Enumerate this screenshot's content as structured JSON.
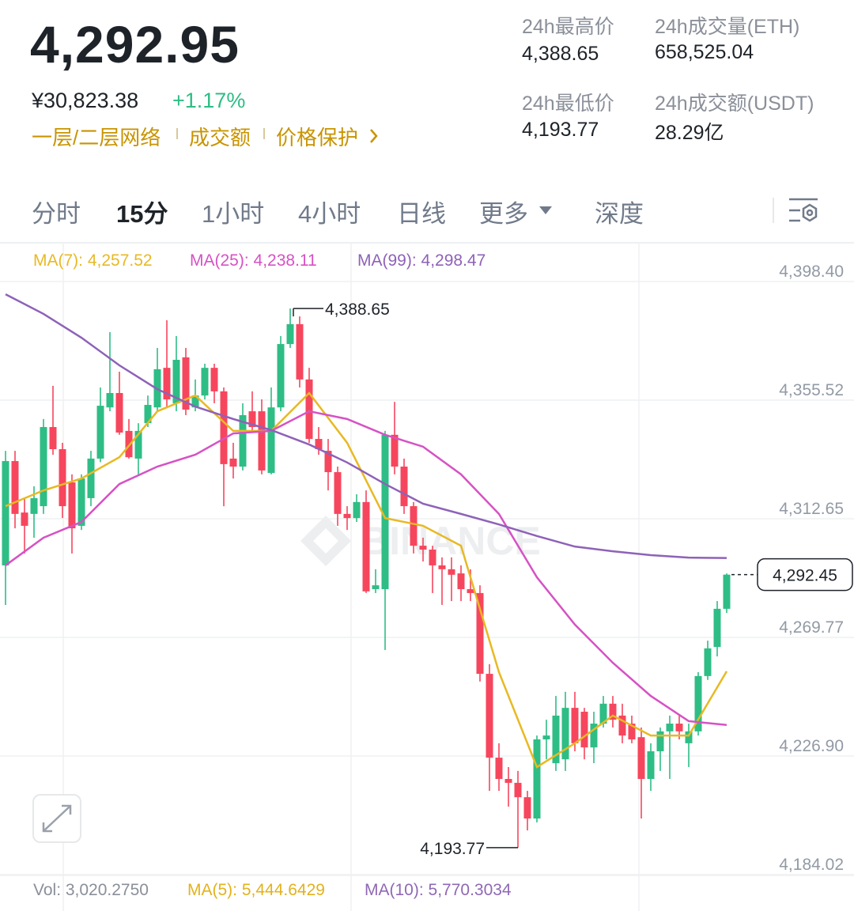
{
  "header": {
    "price": "4,292.95",
    "cny": "¥30,823.38",
    "change": "+1.17%",
    "links": [
      "一层/二层网络",
      "成交额",
      "价格保护"
    ],
    "stats": [
      {
        "label": "24h最高价",
        "value": "4,388.65"
      },
      {
        "label": "24h成交量(ETH)",
        "value": "658,525.04"
      },
      {
        "label": "24h最低价",
        "value": "4,193.77"
      },
      {
        "label": "24h成交额(USDT)",
        "value": "28.29亿"
      }
    ]
  },
  "tabs": [
    "分时",
    "15分",
    "1小时",
    "4小时",
    "日线",
    "更多",
    "深度"
  ],
  "active_tab": 1,
  "chart_data": {
    "type": "candlestick",
    "watermark": "BINANCE",
    "up_color": "#2ebd85",
    "down_color": "#f6465d",
    "ylim": [
      4184.02,
      4398.4
    ],
    "yticks": [
      {
        "value": 4398.4,
        "label": "4,398.40"
      },
      {
        "value": 4355.52,
        "label": "4,355.52"
      },
      {
        "value": 4312.65,
        "label": "4,312.65"
      },
      {
        "value": 4269.77,
        "label": "4,269.77"
      },
      {
        "value": 4226.9,
        "label": "4,226.90"
      },
      {
        "value": 4184.02,
        "label": "4,184.02"
      }
    ],
    "grid": true,
    "candles": [
      [
        4295.8,
        4337.2,
        4281.5,
        4333.5
      ],
      [
        4333.5,
        4337.2,
        4309.2,
        4314.4
      ],
      [
        4314.9,
        4320.1,
        4300.1,
        4310.1
      ],
      [
        4314.4,
        4324.4,
        4305.8,
        4320.1
      ],
      [
        4317.2,
        4348.7,
        4314.4,
        4345.8
      ],
      [
        4345.8,
        4360.7,
        4335.8,
        4337.8
      ],
      [
        4337.8,
        4340.1,
        4312.9,
        4317.2
      ],
      [
        4325.8,
        4328.7,
        4300.1,
        4309.2
      ],
      [
        4310.1,
        4328.7,
        4308.6,
        4327.2
      ],
      [
        4320.1,
        4337.2,
        4317.2,
        4334.4
      ],
      [
        4334.4,
        4360.1,
        4333.1,
        4353.5
      ],
      [
        4352.9,
        4380.1,
        4351.5,
        4358.1
      ],
      [
        4358.1,
        4365.8,
        4343.0,
        4343.8
      ],
      [
        4344.4,
        4348.7,
        4334.4,
        4334.9
      ],
      [
        4334.4,
        4347.2,
        4328.7,
        4344.4
      ],
      [
        4347.2,
        4357.2,
        4345.8,
        4353.8
      ],
      [
        4352.9,
        4374.4,
        4351.5,
        4366.7
      ],
      [
        4367.2,
        4384.4,
        4352.9,
        4355.8
      ],
      [
        4354.4,
        4378.7,
        4351.5,
        4370.1
      ],
      [
        4371.0,
        4374.4,
        4350.1,
        4352.1
      ],
      [
        4352.9,
        4363.0,
        4351.5,
        4357.2
      ],
      [
        4357.2,
        4368.7,
        4355.8,
        4367.2
      ],
      [
        4367.2,
        4368.7,
        4354.4,
        4358.7
      ],
      [
        4358.7,
        4360.1,
        4317.2,
        4332.4
      ],
      [
        4334.4,
        4340.1,
        4327.2,
        4331.5
      ],
      [
        4331.5,
        4354.4,
        4330.1,
        4350.1
      ],
      [
        4351.5,
        4358.7,
        4344.4,
        4345.8
      ],
      [
        4351.5,
        4355.8,
        4328.7,
        4330.1
      ],
      [
        4329.2,
        4360.1,
        4328.7,
        4352.9
      ],
      [
        4352.9,
        4378.7,
        4351.5,
        4375.8
      ],
      [
        4375.8,
        4388.65,
        4374.4,
        4383.0
      ],
      [
        4383.0,
        4385.8,
        4360.1,
        4363.0
      ],
      [
        4363.0,
        4367.2,
        4340.1,
        4341.5
      ],
      [
        4341.5,
        4345.8,
        4335.8,
        4337.8
      ],
      [
        4337.2,
        4341.5,
        4322.9,
        4329.5
      ],
      [
        4329.5,
        4331.5,
        4310.1,
        4314.4
      ],
      [
        4314.4,
        4317.2,
        4308.6,
        4312.9
      ],
      [
        4312.9,
        4321.5,
        4311.5,
        4318.7
      ],
      [
        4318.7,
        4322.9,
        4285.8,
        4286.4
      ],
      [
        4287.2,
        4294.4,
        4285.8,
        4288.6
      ],
      [
        4287.2,
        4344.4,
        4265.2,
        4343.0
      ],
      [
        4343.0,
        4354.9,
        4328.7,
        4331.5
      ],
      [
        4331.5,
        4334.4,
        4314.4,
        4317.2
      ],
      [
        4317.2,
        4318.7,
        4300.1,
        4302.9
      ],
      [
        4302.9,
        4305.8,
        4297.2,
        4301.5
      ],
      [
        4301.5,
        4302.9,
        4285.8,
        4295.8
      ],
      [
        4295.8,
        4298.7,
        4281.5,
        4294.4
      ],
      [
        4294.4,
        4298.7,
        4282.9,
        4292.4
      ],
      [
        4292.9,
        4295.8,
        4282.9,
        4287.2
      ],
      [
        4287.2,
        4294.4,
        4282.9,
        4285.8
      ],
      [
        4285.8,
        4288.6,
        4253.8,
        4256.6
      ],
      [
        4256.6,
        4260.1,
        4214.3,
        4226.3
      ],
      [
        4226.3,
        4231.5,
        4214.3,
        4218.6
      ],
      [
        4218.6,
        4222.9,
        4208.6,
        4217.2
      ],
      [
        4217.2,
        4221.5,
        4193.77,
        4212.0
      ],
      [
        4212.0,
        4214.3,
        4200.0,
        4204.3
      ],
      [
        4204.3,
        4234.3,
        4202.9,
        4232.9
      ],
      [
        4232.9,
        4240.0,
        4225.7,
        4234.3
      ],
      [
        4224.3,
        4248.6,
        4221.5,
        4241.5
      ],
      [
        4225.7,
        4250.1,
        4221.5,
        4244.3
      ],
      [
        4244.3,
        4250.1,
        4228.6,
        4231.5
      ],
      [
        4242.9,
        4244.3,
        4225.7,
        4230.0
      ],
      [
        4230.0,
        4242.9,
        4224.3,
        4238.6
      ],
      [
        4238.6,
        4248.6,
        4237.2,
        4245.8
      ],
      [
        4245.8,
        4248.6,
        4237.2,
        4240.0
      ],
      [
        4241.5,
        4245.8,
        4231.5,
        4234.3
      ],
      [
        4238.6,
        4241.5,
        4231.5,
        4232.9
      ],
      [
        4233.7,
        4237.2,
        4204.3,
        4218.6
      ],
      [
        4218.6,
        4231.5,
        4214.3,
        4228.6
      ],
      [
        4228.6,
        4237.2,
        4221.5,
        4235.8
      ],
      [
        4235.8,
        4241.5,
        4218.6,
        4238.6
      ],
      [
        4238.6,
        4241.5,
        4232.9,
        4235.8
      ],
      [
        4231.5,
        4238.6,
        4222.9,
        4235.8
      ],
      [
        4235.8,
        4257.2,
        4234.3,
        4255.8
      ],
      [
        4255.8,
        4268.6,
        4254.4,
        4265.8
      ],
      [
        4266.3,
        4282.9,
        4262.9,
        4280.1
      ],
      [
        4280.1,
        4292.9,
        4278.6,
        4292.45
      ]
    ],
    "series": [
      {
        "name": "MA(7): 4,257.52",
        "color": "#e8b923",
        "x": [
          0,
          4,
          8,
          12,
          16,
          20,
          24,
          28,
          32,
          36,
          40,
          44,
          48,
          52,
          56,
          60,
          64,
          68,
          72,
          76
        ],
        "values": [
          4317.2,
          4322.9,
          4327.2,
          4334.9,
          4351.5,
          4357.2,
          4344.4,
          4344.4,
          4358.1,
          4340.1,
          4312.9,
          4310.1,
          4302.9,
          4257.2,
          4222.9,
          4231.5,
          4241.5,
          4234.3,
          4234.3,
          4257.52
        ]
      },
      {
        "name": "MA(25): 4,238.11",
        "color": "#d652c4",
        "x": [
          0,
          4,
          8,
          12,
          16,
          20,
          24,
          28,
          32,
          36,
          40,
          44,
          48,
          52,
          56,
          60,
          64,
          68,
          72,
          76
        ],
        "values": [
          4295.8,
          4305.8,
          4311.5,
          4325.2,
          4331.5,
          4335.8,
          4343.5,
          4344.4,
          4351.5,
          4348.7,
          4343.0,
          4338.7,
          4328.7,
          4314.4,
          4291.5,
          4274.4,
          4260.6,
          4248.6,
          4239.5,
          4238.11
        ]
      },
      {
        "name": "MA(99): 4,298.47",
        "color": "#8e62b8",
        "x": [
          0,
          4,
          8,
          12,
          16,
          20,
          24,
          28,
          32,
          36,
          40,
          44,
          48,
          52,
          56,
          60,
          64,
          68,
          72,
          76
        ],
        "values": [
          4393.8,
          4386.7,
          4378.1,
          4368.1,
          4359.5,
          4353.2,
          4348.7,
          4344.7,
          4339.5,
          4333.0,
          4325.2,
          4318.1,
          4314.4,
          4310.6,
          4306.4,
          4302.6,
          4300.9,
          4299.5,
          4298.6,
          4298.47
        ]
      }
    ],
    "annotations": [
      {
        "value": 4388.65,
        "label": "4,388.65",
        "kind": "high"
      },
      {
        "value": 4193.77,
        "label": "4,193.77",
        "kind": "low"
      }
    ],
    "last_price": {
      "value": 4292.45,
      "label": "4,292.45"
    }
  },
  "volume": {
    "items": [
      {
        "text": "Vol: 3,020.2750",
        "color": "#8a8f99"
      },
      {
        "text": "MA(5): 5,444.6429",
        "color": "#e3b21c"
      },
      {
        "text": "MA(10): 5,770.3034",
        "color": "#8f68b5"
      }
    ]
  }
}
